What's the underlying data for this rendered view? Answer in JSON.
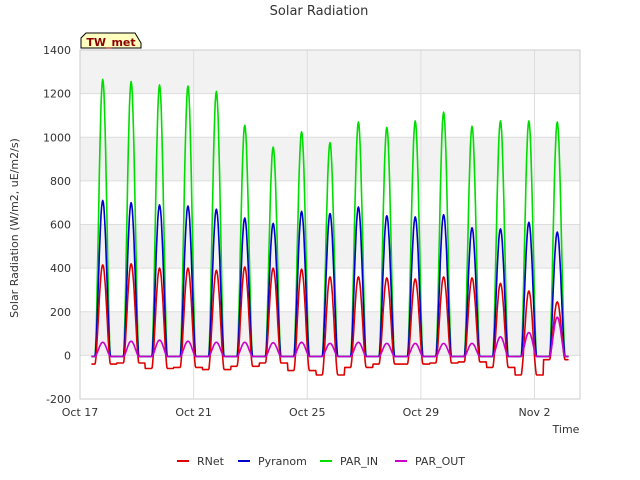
{
  "chart_data": {
    "type": "line",
    "title": "Solar Radiation",
    "xlabel": "Time",
    "ylabel": "Solar Radiation (W/m2, uE/m2/s)",
    "badge": "TW_met",
    "x_ticks": [
      "Oct 17",
      "Oct 21",
      "Oct 25",
      "Oct 29",
      "Nov 2"
    ],
    "x_tick_days": [
      0,
      4,
      8,
      12,
      16
    ],
    "xlim_days": [
      0,
      17.6
    ],
    "ylim": [
      -200,
      1400
    ],
    "y_ticks": [
      -200,
      0,
      200,
      400,
      600,
      800,
      1000,
      1200,
      1400
    ],
    "grid": true,
    "background_bands": true,
    "legend_position": "bottom-center",
    "day_peak_days": [
      0.8,
      1.8,
      2.8,
      3.8,
      4.8,
      5.8,
      6.8,
      7.8,
      8.8,
      9.8,
      10.8,
      11.8,
      12.8,
      13.8,
      14.8,
      15.8,
      16.8
    ],
    "series": [
      {
        "name": "RNet",
        "color": "#dd0000",
        "night_values": [
          -40,
          -35,
          -60,
          -55,
          -65,
          -50,
          -35,
          -70,
          -90,
          -55,
          -40,
          -40,
          -35,
          -30,
          -55,
          -90,
          -20
        ],
        "peaks": [
          415,
          420,
          400,
          400,
          390,
          405,
          400,
          395,
          360,
          360,
          355,
          350,
          360,
          355,
          330,
          295,
          245
        ]
      },
      {
        "name": "Pyranom",
        "color": "#0000cc",
        "night_values": [
          -5,
          -5,
          -5,
          -5,
          -5,
          -5,
          -5,
          -5,
          -5,
          -5,
          -5,
          -5,
          -5,
          -5,
          -5,
          -5,
          -5
        ],
        "peaks": [
          710,
          700,
          690,
          685,
          670,
          630,
          605,
          660,
          650,
          680,
          640,
          635,
          645,
          585,
          580,
          610,
          565
        ]
      },
      {
        "name": "PAR_IN",
        "color": "#00dd00",
        "night_values": [
          -5,
          -5,
          -5,
          -5,
          -5,
          -5,
          -5,
          -5,
          -5,
          -5,
          -5,
          -5,
          -5,
          -5,
          -5,
          -5,
          -5
        ],
        "peaks": [
          1265,
          1255,
          1240,
          1235,
          1210,
          1055,
          955,
          1025,
          975,
          1070,
          1045,
          1075,
          1115,
          1050,
          1075,
          1075,
          1070
        ]
      },
      {
        "name": "PAR_OUT",
        "color": "#cc00cc",
        "night_values": [
          -5,
          -5,
          -5,
          -5,
          -5,
          -5,
          -5,
          -5,
          -5,
          -5,
          -5,
          -5,
          -5,
          -5,
          -5,
          -5,
          -5
        ],
        "peaks": [
          60,
          65,
          70,
          65,
          60,
          60,
          58,
          60,
          55,
          60,
          55,
          55,
          55,
          55,
          85,
          105,
          175
        ]
      }
    ]
  }
}
